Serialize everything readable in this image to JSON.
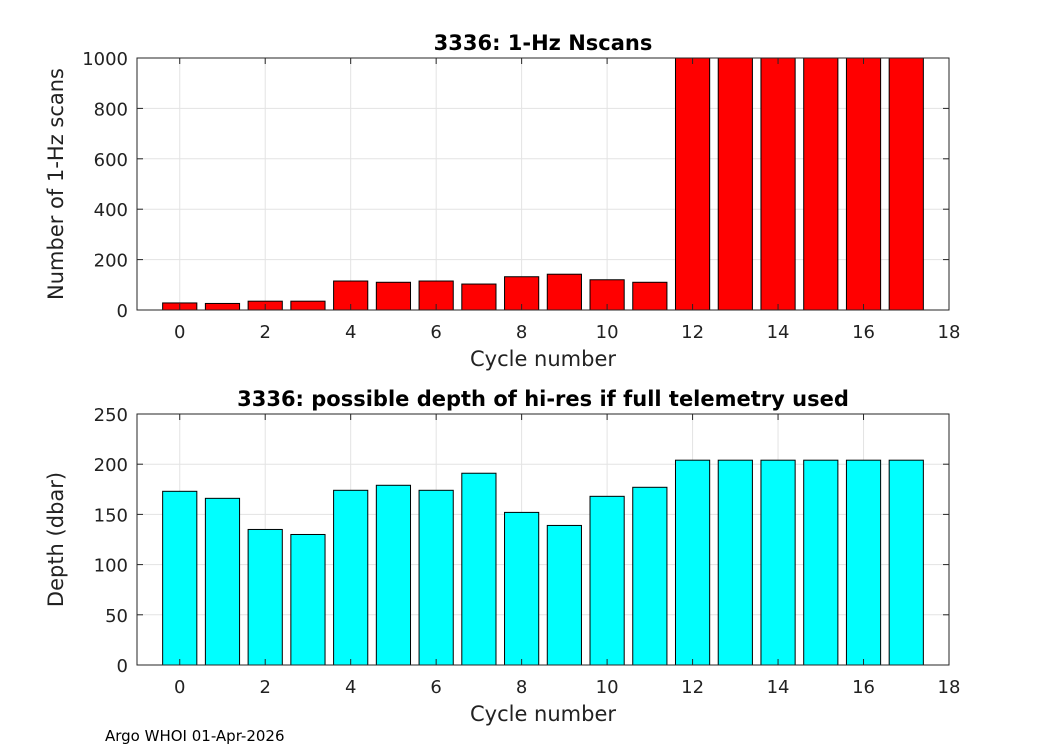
{
  "footer": "Argo WHOI 01-Apr-2026",
  "chart_data": [
    {
      "type": "bar",
      "title": "3336: 1-Hz Nscans",
      "xlabel": "Cycle number",
      "ylabel": "Number of 1-Hz scans",
      "x": [
        0,
        1,
        2,
        3,
        4,
        5,
        6,
        7,
        8,
        9,
        10,
        11,
        12,
        13,
        14,
        15,
        16,
        17
      ],
      "values": [
        28,
        26,
        35,
        35,
        115,
        110,
        115,
        103,
        132,
        142,
        120,
        110,
        1000,
        1000,
        1000,
        1000,
        1000,
        1000
      ],
      "xlim": [
        -1,
        18
      ],
      "ylim": [
        0,
        1000
      ],
      "xticks": [
        0,
        2,
        4,
        6,
        8,
        10,
        12,
        14,
        16,
        18
      ],
      "yticks": [
        0,
        200,
        400,
        600,
        800,
        1000
      ],
      "grid": true,
      "color": "#ff0000"
    },
    {
      "type": "bar",
      "title": "3336: possible depth of hi-res if full telemetry used",
      "xlabel": "Cycle number",
      "ylabel": "Depth (dbar)",
      "x": [
        0,
        1,
        2,
        3,
        4,
        5,
        6,
        7,
        8,
        9,
        10,
        11,
        12,
        13,
        14,
        15,
        16,
        17
      ],
      "values": [
        173,
        166,
        135,
        130,
        174,
        179,
        174,
        191,
        152,
        139,
        168,
        177,
        204,
        204,
        204,
        204,
        204,
        204
      ],
      "xlim": [
        -1,
        18
      ],
      "ylim": [
        0,
        250
      ],
      "xticks": [
        0,
        2,
        4,
        6,
        8,
        10,
        12,
        14,
        16,
        18
      ],
      "yticks": [
        0,
        50,
        100,
        150,
        200,
        250
      ],
      "grid": true,
      "color": "#00ffff"
    }
  ]
}
